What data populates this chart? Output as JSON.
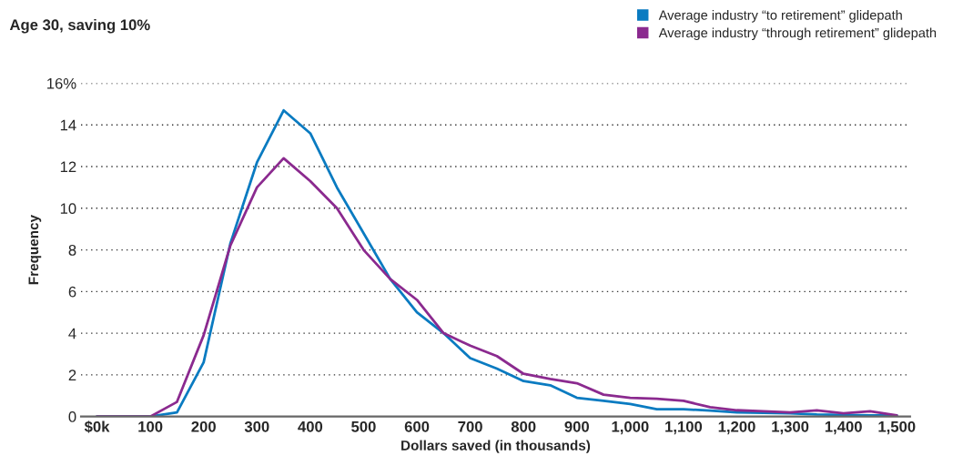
{
  "chart_data": {
    "type": "line",
    "title": "Age 30, saving 10%",
    "xlabel": "Dollars saved (in thousands)",
    "ylabel": "Frequency",
    "x": [
      0,
      50,
      100,
      150,
      200,
      250,
      300,
      350,
      400,
      450,
      500,
      550,
      600,
      650,
      700,
      750,
      800,
      850,
      900,
      950,
      1000,
      1050,
      1100,
      1150,
      1200,
      1250,
      1300,
      1350,
      1400,
      1450,
      1500
    ],
    "series": [
      {
        "name": "Average industry “to retirement” glidepath",
        "color": "#0a7bc1",
        "values": [
          0,
          0,
          0,
          0.2,
          2.6,
          8.3,
          12.2,
          14.7,
          13.6,
          11.0,
          8.8,
          6.6,
          5.0,
          4.0,
          2.8,
          2.3,
          1.7,
          1.5,
          0.9,
          0.75,
          0.6,
          0.35,
          0.35,
          0.28,
          0.2,
          0.18,
          0.15,
          0.1,
          0.08,
          0.05,
          0.05
        ]
      },
      {
        "name": "Average industry “through retirement” glidepath",
        "color": "#8b2a8f",
        "values": [
          0,
          0,
          0,
          0.7,
          3.9,
          8.2,
          11.0,
          12.4,
          11.3,
          10.0,
          8.0,
          6.6,
          5.6,
          4.0,
          3.4,
          2.9,
          2.05,
          1.8,
          1.6,
          1.05,
          0.9,
          0.85,
          0.75,
          0.45,
          0.3,
          0.25,
          0.2,
          0.3,
          0.15,
          0.25,
          0.05
        ]
      }
    ],
    "xlim": [
      -30,
      1525
    ],
    "ylim": [
      0,
      16
    ],
    "xticks": [
      {
        "value": 0,
        "label": "$0k"
      },
      100,
      200,
      300,
      400,
      500,
      600,
      700,
      800,
      900,
      {
        "value": 1000,
        "label": "1,000"
      },
      {
        "value": 1100,
        "label": "1,100"
      },
      {
        "value": 1200,
        "label": "1,200"
      },
      {
        "value": 1300,
        "label": "1,300"
      },
      {
        "value": 1400,
        "label": "1,400"
      },
      {
        "value": 1500,
        "label": "1,500"
      }
    ],
    "yticks": [
      0,
      2,
      4,
      6,
      8,
      10,
      12,
      14,
      {
        "value": 16,
        "label": "16%"
      }
    ],
    "grid": "y",
    "legend": "top right",
    "line_style": "solid",
    "marker": "none"
  }
}
